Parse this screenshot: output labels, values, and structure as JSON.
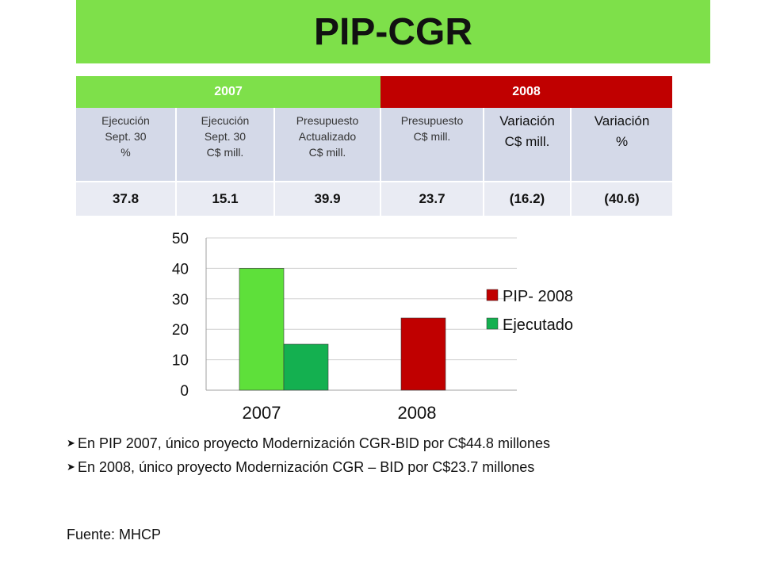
{
  "title": "PIP-CGR",
  "table": {
    "year_headers": [
      {
        "label": "2007"
      },
      {
        "label": "2008"
      }
    ],
    "columns": [
      "Ejecución\nSept. 30\n%",
      "Ejecución\nSept. 30\nC$ mill.",
      "Presupuesto\nActualizado\nC$ mill.",
      "Presupuesto\nC$ mill.",
      "Variación\nC$ mill.",
      "Variación\n%"
    ],
    "values": [
      "37.8",
      "15.1",
      "39.9",
      "23.7",
      "(16.2)",
      "(40.6)"
    ]
  },
  "chart_data": {
    "type": "bar",
    "categories": [
      "2007",
      "2008"
    ],
    "series": [
      {
        "name": "PIP- 2008",
        "values": [
          40,
          23.7
        ],
        "bar_colors": [
          "#5EE03A",
          "#C00000"
        ]
      },
      {
        "name": "Ejecutado",
        "values": [
          15.1,
          null
        ],
        "bar_colors": [
          "#14B050",
          null
        ]
      }
    ],
    "legend_swatches": [
      "#C00000",
      "#14B050"
    ],
    "ylim": [
      0,
      50
    ],
    "yticks": [
      0,
      10,
      20,
      30,
      40,
      50
    ],
    "grid": true,
    "legend_position": "right"
  },
  "bullets": [
    "En PIP 2007, único proyecto Modernización CGR-BID por C$44.8 millones",
    "En 2008, único proyecto Modernización CGR – BID por C$23.7 millones"
  ],
  "source": "Fuente: MHCP",
  "colors": {
    "title_bg": "#7EE04A",
    "header_2007": "#7EE04A",
    "header_2008": "#C00000",
    "subheader_bg": "#D4D9E8",
    "value_row_bg": "#E9EBF3"
  },
  "icons": {
    "bullet": "arrow-bullet-icon"
  }
}
